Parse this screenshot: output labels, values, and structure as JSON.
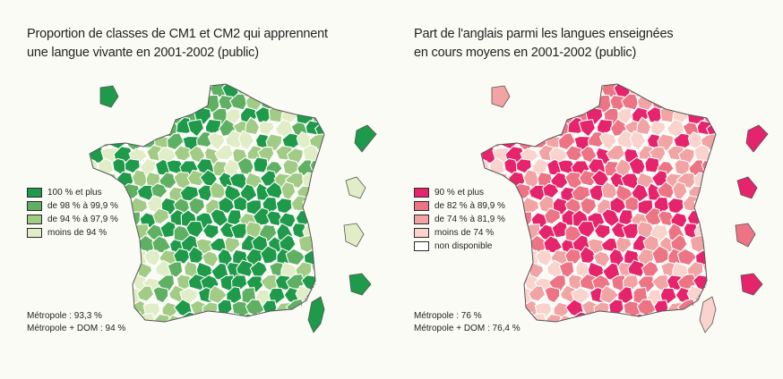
{
  "left": {
    "title": [
      "Proportion de classes de CM1 et CM2 qui apprennent",
      "une langue vivante en 2001-2002 (public)"
    ],
    "legend": [
      {
        "label": "100 % et plus",
        "color": "#1f9a4a"
      },
      {
        "label": "de 98 % à 99,9 %",
        "color": "#5fb063"
      },
      {
        "label": "de 94 % à 97,9 %",
        "color": "#a2cc86"
      },
      {
        "label": "moins de 94 %",
        "color": "#e1edc6"
      }
    ],
    "stats": [
      "Métropole : 93,3 %",
      "Métropole + DOM : 94 %"
    ],
    "dom": [
      "#1f9a4a",
      "#e1edc6",
      "#e1edc6",
      "#1f9a4a",
      "#1f9a4a"
    ]
  },
  "right": {
    "title": [
      "Part de l'anglais parmi les langues enseignées",
      "en cours moyens en 2001-2002 (public)"
    ],
    "legend": [
      {
        "label": "90 % et plus",
        "color": "#e5246b"
      },
      {
        "label": "de 82 % à 89,9 %",
        "color": "#ec7484"
      },
      {
        "label": "de 74 % à 81,9 %",
        "color": "#f2a3a3"
      },
      {
        "label": "moins de 74 %",
        "color": "#f9d3cc"
      },
      {
        "label": "non disponible",
        "color": "#ffffff"
      }
    ],
    "stats": [
      "Métropole : 76 %",
      "Métropole + DOM : 76,4 %"
    ],
    "dom": [
      "#e5246b",
      "#e5246b",
      "#ec7484",
      "#e5246b",
      "#f2a3a3"
    ]
  }
}
